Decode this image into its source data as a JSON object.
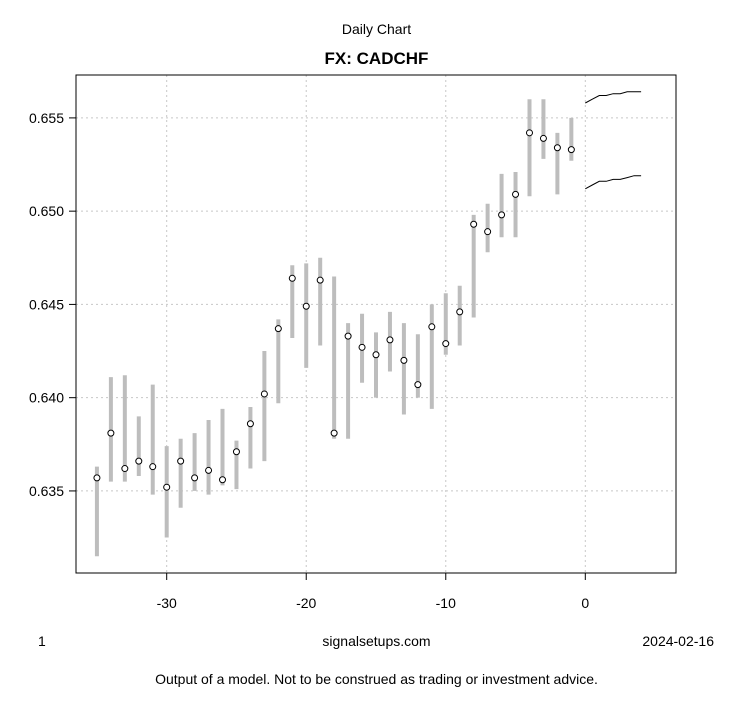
{
  "header": {
    "subtitle": "Daily Chart",
    "title": "FX: CADCHF"
  },
  "footer": {
    "left": "1",
    "center": "signalsetups.com",
    "right": "2024-02-16",
    "disclaimer": "Output of a model. Not to be construed as trading or investment advice."
  },
  "chart_data": {
    "type": "candlestick-range",
    "title": "FX: CADCHF",
    "subtitle": "Daily Chart",
    "xlabel": "",
    "ylabel": "",
    "xlim": [
      -36.5,
      6.5
    ],
    "ylim": [
      0.6306,
      0.6573
    ],
    "x_ticks": [
      -30,
      -20,
      -10,
      0
    ],
    "y_ticks": [
      0.635,
      0.64,
      0.645,
      0.65,
      0.655
    ],
    "y_tick_labels": [
      "0.635",
      "0.640",
      "0.645",
      "0.650",
      "0.655"
    ],
    "grid": true,
    "colors": {
      "range_bar": "#bdbdbd",
      "close_marker": "#000000",
      "band": "#000000",
      "grid": "#c8c8c8"
    },
    "bars": [
      {
        "x": -35,
        "low": 0.6315,
        "high": 0.6363,
        "close": 0.6357
      },
      {
        "x": -34,
        "low": 0.6355,
        "high": 0.6411,
        "close": 0.6381
      },
      {
        "x": -33,
        "low": 0.6355,
        "high": 0.6412,
        "close": 0.6362
      },
      {
        "x": -32,
        "low": 0.6358,
        "high": 0.639,
        "close": 0.6366
      },
      {
        "x": -31,
        "low": 0.6348,
        "high": 0.6407,
        "close": 0.6363
      },
      {
        "x": -30,
        "low": 0.6325,
        "high": 0.6374,
        "close": 0.6352
      },
      {
        "x": -29,
        "low": 0.6341,
        "high": 0.6378,
        "close": 0.6366
      },
      {
        "x": -28,
        "low": 0.635,
        "high": 0.6381,
        "close": 0.6357
      },
      {
        "x": -27,
        "low": 0.6348,
        "high": 0.6388,
        "close": 0.6361
      },
      {
        "x": -26,
        "low": 0.6353,
        "high": 0.6394,
        "close": 0.6356
      },
      {
        "x": -25,
        "low": 0.6351,
        "high": 0.6377,
        "close": 0.6371
      },
      {
        "x": -24,
        "low": 0.6362,
        "high": 0.6395,
        "close": 0.6386
      },
      {
        "x": -23,
        "low": 0.6366,
        "high": 0.6425,
        "close": 0.6402
      },
      {
        "x": -22,
        "low": 0.6397,
        "high": 0.6442,
        "close": 0.6437
      },
      {
        "x": -21,
        "low": 0.6432,
        "high": 0.6471,
        "close": 0.6464
      },
      {
        "x": -20,
        "low": 0.6416,
        "high": 0.6472,
        "close": 0.6449
      },
      {
        "x": -19,
        "low": 0.6428,
        "high": 0.6475,
        "close": 0.6463
      },
      {
        "x": -18,
        "low": 0.6378,
        "high": 0.6465,
        "close": 0.6381
      },
      {
        "x": -17,
        "low": 0.6378,
        "high": 0.644,
        "close": 0.6433
      },
      {
        "x": -16,
        "low": 0.6408,
        "high": 0.6445,
        "close": 0.6427
      },
      {
        "x": -15,
        "low": 0.64,
        "high": 0.6435,
        "close": 0.6423
      },
      {
        "x": -14,
        "low": 0.6414,
        "high": 0.6446,
        "close": 0.6431
      },
      {
        "x": -13,
        "low": 0.6391,
        "high": 0.644,
        "close": 0.642
      },
      {
        "x": -12,
        "low": 0.64,
        "high": 0.6434,
        "close": 0.6407
      },
      {
        "x": -11,
        "low": 0.6394,
        "high": 0.645,
        "close": 0.6438
      },
      {
        "x": -10,
        "low": 0.6423,
        "high": 0.6456,
        "close": 0.6429
      },
      {
        "x": -9,
        "low": 0.6428,
        "high": 0.646,
        "close": 0.6446
      },
      {
        "x": -8,
        "low": 0.6443,
        "high": 0.6498,
        "close": 0.6493
      },
      {
        "x": -7,
        "low": 0.6478,
        "high": 0.6504,
        "close": 0.6489
      },
      {
        "x": -6,
        "low": 0.6486,
        "high": 0.652,
        "close": 0.6498
      },
      {
        "x": -5,
        "low": 0.6486,
        "high": 0.6521,
        "close": 0.6509
      },
      {
        "x": -4,
        "low": 0.6508,
        "high": 0.656,
        "close": 0.6542
      },
      {
        "x": -3,
        "low": 0.6528,
        "high": 0.656,
        "close": 0.6539
      },
      {
        "x": -2,
        "low": 0.6509,
        "high": 0.6542,
        "close": 0.6534
      },
      {
        "x": -1,
        "low": 0.6527,
        "high": 0.655,
        "close": 0.6533
      }
    ],
    "forecast_upper": {
      "x": [
        0,
        0.5,
        1,
        1.5,
        2,
        2.5,
        3,
        3.5,
        4
      ],
      "y": [
        0.6558,
        0.656,
        0.6562,
        0.6562,
        0.6563,
        0.6563,
        0.6564,
        0.6564,
        0.6564
      ]
    },
    "forecast_lower": {
      "x": [
        0,
        0.5,
        1,
        1.5,
        2,
        2.5,
        3,
        3.5,
        4
      ],
      "y": [
        0.6512,
        0.6514,
        0.6516,
        0.6516,
        0.6517,
        0.6517,
        0.6518,
        0.6519,
        0.6519
      ]
    }
  }
}
